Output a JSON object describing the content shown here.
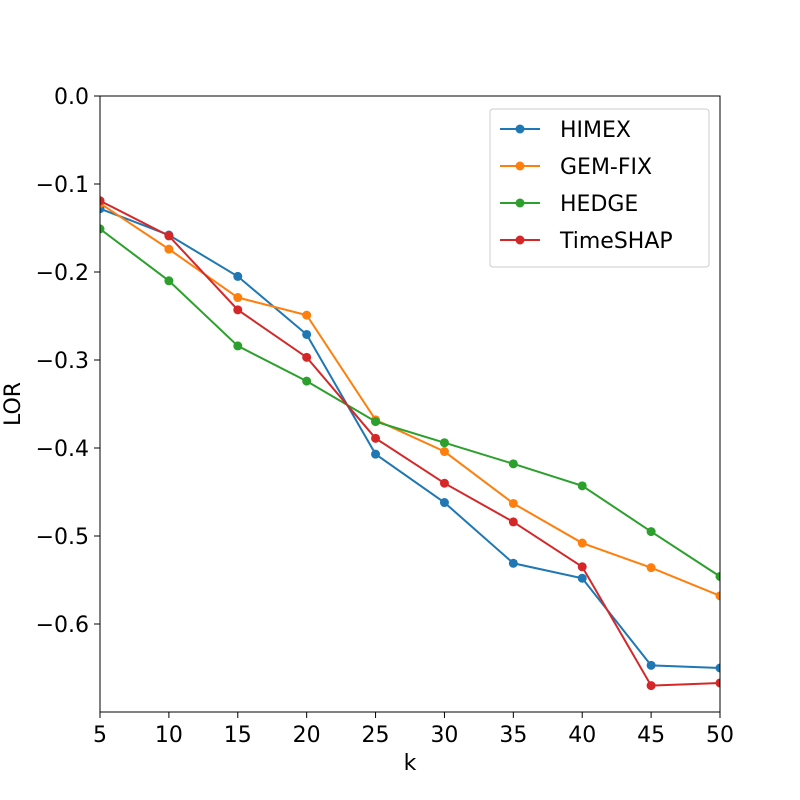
{
  "chart_data": {
    "type": "line",
    "xlabel": "k",
    "ylabel": "LOR",
    "xlim": [
      5,
      50
    ],
    "ylim": [
      -0.7,
      0.0
    ],
    "x_ticks": [
      "5",
      "10",
      "15",
      "20",
      "25",
      "30",
      "35",
      "40",
      "45",
      "50"
    ],
    "y_ticks": [
      "0.0",
      "−0.1",
      "−0.2",
      "−0.3",
      "−0.4",
      "−0.5",
      "−0.6"
    ],
    "grid": false,
    "legend_position": "top-right",
    "x": [
      5,
      10,
      15,
      20,
      25,
      30,
      35,
      40,
      45,
      50
    ],
    "series": [
      {
        "name": "HIMEX",
        "color": "#1f77b4",
        "values": [
          -0.128,
          -0.158,
          -0.205,
          -0.271,
          -0.407,
          -0.462,
          -0.531,
          -0.548,
          -0.647,
          -0.65
        ]
      },
      {
        "name": "GEM-FIX",
        "color": "#ff7f0e",
        "values": [
          -0.122,
          -0.174,
          -0.229,
          -0.249,
          -0.368,
          -0.404,
          -0.463,
          -0.508,
          -0.536,
          -0.568
        ]
      },
      {
        "name": "HEDGE",
        "color": "#2ca02c",
        "values": [
          -0.151,
          -0.21,
          -0.284,
          -0.324,
          -0.37,
          -0.394,
          -0.418,
          -0.443,
          -0.495,
          -0.546
        ]
      },
      {
        "name": "TimeSHAP",
        "color": "#d62728",
        "values": [
          -0.119,
          -0.159,
          -0.243,
          -0.297,
          -0.389,
          -0.44,
          -0.484,
          -0.535,
          -0.67,
          -0.667
        ]
      }
    ]
  }
}
